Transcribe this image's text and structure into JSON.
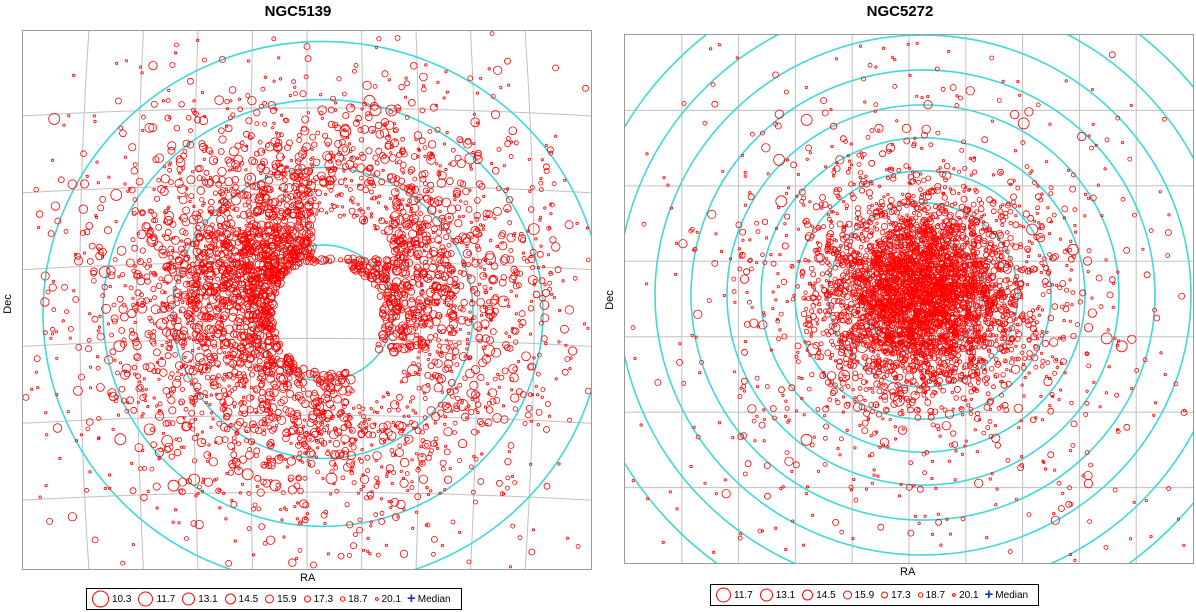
{
  "chart_data": [
    {
      "type": "scatter",
      "title": "NGC5139",
      "xlabel": "RA",
      "ylabel": "Dec",
      "grid": true,
      "legend_position": "bottom",
      "concentric_circles": 4,
      "legend": {
        "magnitudes": [
          "10.3",
          "11.7",
          "13.1",
          "14.5",
          "15.9",
          "17.3",
          "18.7",
          "20.1"
        ],
        "median_label": "Median"
      },
      "colors": {
        "points": "#ff0000",
        "circles": "#40d8d8",
        "grid": "#c0c0c0",
        "median": "#1a2fd8"
      }
    },
    {
      "type": "scatter",
      "title": "NGC5272",
      "xlabel": "RA",
      "ylabel": "Dec",
      "grid": true,
      "legend_position": "bottom",
      "concentric_circles": 9,
      "legend": {
        "magnitudes": [
          "11.7",
          "13.1",
          "14.5",
          "15.9",
          "17.3",
          "18.7",
          "20.1"
        ],
        "median_label": "Median"
      },
      "colors": {
        "points": "#ff0000",
        "circles": "#40d8d8",
        "grid": "#c0c0c0",
        "median": "#1a2fd8"
      }
    }
  ]
}
